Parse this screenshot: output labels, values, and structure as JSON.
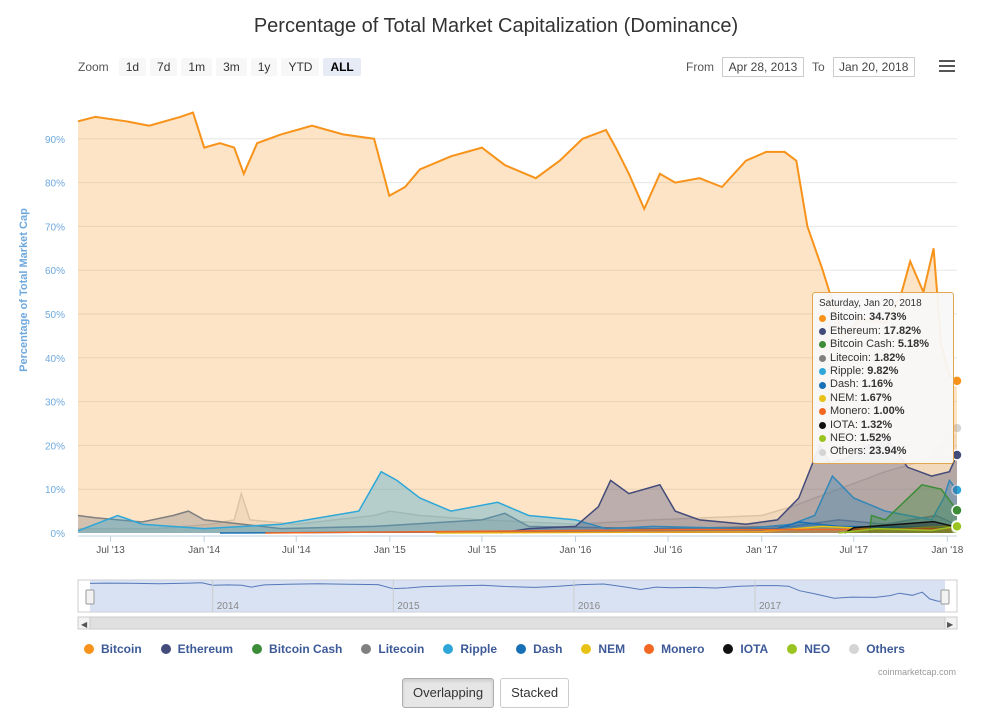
{
  "title": "Percentage of Total Market Capitalization (Dominance)",
  "zoom": {
    "label": "Zoom",
    "buttons": [
      "1d",
      "7d",
      "1m",
      "3m",
      "1y",
      "YTD",
      "ALL"
    ],
    "active": "ALL"
  },
  "range": {
    "from_label": "From",
    "from_value": "Apr 28, 2013",
    "to_label": "To",
    "to_value": "Jan 20, 2018"
  },
  "colors": {
    "Bitcoin": "#f7931a",
    "Ethereum": "#434b7a",
    "Bitcoin Cash": "#3c8c38",
    "Litecoin": "#808080",
    "Ripple": "#2ea7d8",
    "Dash": "#1770b5",
    "NEM": "#e8c214",
    "Monero": "#f26822",
    "IOTA": "#111111",
    "NEO": "#9ac421",
    "Others": "#d4d4d4"
  },
  "tooltip": {
    "date": "Saturday, Jan 20, 2018",
    "rows": [
      {
        "name": "Bitcoin",
        "value": "34.73%"
      },
      {
        "name": "Ethereum",
        "value": "17.82%"
      },
      {
        "name": "Bitcoin Cash",
        "value": "5.18%"
      },
      {
        "name": "Litecoin",
        "value": "1.82%"
      },
      {
        "name": "Ripple",
        "value": "9.82%"
      },
      {
        "name": "Dash",
        "value": "1.16%"
      },
      {
        "name": "NEM",
        "value": "1.67%"
      },
      {
        "name": "Monero",
        "value": "1.00%"
      },
      {
        "name": "IOTA",
        "value": "1.32%"
      },
      {
        "name": "NEO",
        "value": "1.52%"
      },
      {
        "name": "Others",
        "value": "23.94%"
      }
    ]
  },
  "legend": [
    "Bitcoin",
    "Ethereum",
    "Bitcoin Cash",
    "Litecoin",
    "Ripple",
    "Dash",
    "NEM",
    "Monero",
    "IOTA",
    "NEO",
    "Others"
  ],
  "navigator_years": [
    "2014",
    "2015",
    "2016",
    "2017"
  ],
  "credit": "coinmarketcap.com",
  "mode_buttons": {
    "overlapping": "Overlapping",
    "stacked": "Stacked"
  },
  "chart_data": {
    "type": "area",
    "title": "Percentage of Total Market Capitalization (Dominance)",
    "ylabel": "Percentage of Total Market Cap",
    "ylim": [
      0,
      100
    ],
    "yticks": [
      "0%",
      "10%",
      "20%",
      "30%",
      "40%",
      "50%",
      "60%",
      "70%",
      "80%",
      "90%"
    ],
    "x_range": [
      "2013-04-28",
      "2018-01-20"
    ],
    "xticks": [
      {
        "date": "2013-07-01",
        "label": "Jul '13"
      },
      {
        "date": "2014-01-01",
        "label": "Jan '14"
      },
      {
        "date": "2014-07-01",
        "label": "Jul '14"
      },
      {
        "date": "2015-01-01",
        "label": "Jan '15"
      },
      {
        "date": "2015-07-01",
        "label": "Jul '15"
      },
      {
        "date": "2016-01-01",
        "label": "Jan '16"
      },
      {
        "date": "2016-07-01",
        "label": "Jul '16"
      },
      {
        "date": "2017-01-01",
        "label": "Jan '17"
      },
      {
        "date": "2017-07-01",
        "label": "Jul '17"
      },
      {
        "date": "2018-01-01",
        "label": "Jan '18"
      }
    ],
    "grid": true,
    "legend_position": "bottom",
    "series": [
      {
        "name": "Others",
        "points": [
          [
            "2013-04-28",
            1
          ],
          [
            "2013-10-01",
            1
          ],
          [
            "2014-01-15",
            2
          ],
          [
            "2014-03-01",
            3
          ],
          [
            "2014-03-15",
            9
          ],
          [
            "2014-04-01",
            3
          ],
          [
            "2014-07-01",
            2
          ],
          [
            "2014-12-01",
            4
          ],
          [
            "2015-01-01",
            5
          ],
          [
            "2015-03-01",
            4
          ],
          [
            "2015-07-01",
            3
          ],
          [
            "2016-01-01",
            2
          ],
          [
            "2016-06-01",
            3
          ],
          [
            "2017-01-01",
            4
          ],
          [
            "2017-03-01",
            6
          ],
          [
            "2017-06-01",
            10
          ],
          [
            "2017-09-01",
            14
          ],
          [
            "2017-12-01",
            17
          ],
          [
            "2018-01-05",
            23
          ],
          [
            "2018-01-20",
            23.94
          ]
        ]
      },
      {
        "name": "Bitcoin",
        "points": [
          [
            "2013-04-28",
            94
          ],
          [
            "2013-06-01",
            95
          ],
          [
            "2013-08-01",
            94
          ],
          [
            "2013-09-15",
            93
          ],
          [
            "2013-11-15",
            95
          ],
          [
            "2013-12-10",
            96
          ],
          [
            "2014-01-01",
            88
          ],
          [
            "2014-02-01",
            89
          ],
          [
            "2014-03-01",
            88
          ],
          [
            "2014-03-20",
            82
          ],
          [
            "2014-04-15",
            89
          ],
          [
            "2014-06-01",
            91
          ],
          [
            "2014-08-01",
            93
          ],
          [
            "2014-10-01",
            91
          ],
          [
            "2014-12-01",
            90
          ],
          [
            "2014-12-31",
            77
          ],
          [
            "2015-01-31",
            79
          ],
          [
            "2015-03-01",
            83
          ],
          [
            "2015-05-01",
            86
          ],
          [
            "2015-07-01",
            88
          ],
          [
            "2015-08-15",
            84
          ],
          [
            "2015-10-15",
            81
          ],
          [
            "2015-12-01",
            85
          ],
          [
            "2016-01-15",
            90
          ],
          [
            "2016-03-01",
            92
          ],
          [
            "2016-03-20",
            88
          ],
          [
            "2016-04-15",
            82
          ],
          [
            "2016-05-15",
            74
          ],
          [
            "2016-06-15",
            82
          ],
          [
            "2016-07-15",
            80
          ],
          [
            "2016-09-01",
            81
          ],
          [
            "2016-10-15",
            79
          ],
          [
            "2016-12-01",
            85
          ],
          [
            "2017-01-10",
            87
          ],
          [
            "2017-02-15",
            87
          ],
          [
            "2017-03-10",
            85
          ],
          [
            "2017-04-01",
            70
          ],
          [
            "2017-05-01",
            60
          ],
          [
            "2017-06-10",
            45
          ],
          [
            "2017-07-15",
            49
          ],
          [
            "2017-09-01",
            48
          ],
          [
            "2017-10-01",
            54
          ],
          [
            "2017-10-20",
            62
          ],
          [
            "2017-11-15",
            55
          ],
          [
            "2017-12-05",
            65
          ],
          [
            "2017-12-20",
            43
          ],
          [
            "2018-01-05",
            36
          ],
          [
            "2018-01-20",
            34.73
          ]
        ]
      },
      {
        "name": "Litecoin",
        "points": [
          [
            "2013-04-28",
            4
          ],
          [
            "2013-06-01",
            3.5
          ],
          [
            "2013-09-01",
            2.5
          ],
          [
            "2013-11-01",
            4
          ],
          [
            "2013-12-01",
            5
          ],
          [
            "2014-01-01",
            3
          ],
          [
            "2014-06-01",
            1
          ],
          [
            "2014-12-01",
            1.5
          ],
          [
            "2015-07-01",
            3
          ],
          [
            "2015-08-15",
            4.5
          ],
          [
            "2015-10-01",
            1.5
          ],
          [
            "2016-06-01",
            1
          ],
          [
            "2017-03-01",
            1.5
          ],
          [
            "2017-06-01",
            3
          ],
          [
            "2017-09-01",
            2
          ],
          [
            "2017-12-10",
            4
          ],
          [
            "2018-01-20",
            1.82
          ]
        ]
      },
      {
        "name": "Ripple",
        "points": [
          [
            "2013-04-28",
            0.5
          ],
          [
            "2013-07-15",
            4
          ],
          [
            "2013-09-01",
            2
          ],
          [
            "2014-01-01",
            1
          ],
          [
            "2014-06-01",
            2
          ],
          [
            "2014-11-01",
            5
          ],
          [
            "2014-12-15",
            14
          ],
          [
            "2015-01-15",
            12
          ],
          [
            "2015-03-01",
            8
          ],
          [
            "2015-05-01",
            5
          ],
          [
            "2015-08-01",
            7
          ],
          [
            "2015-10-01",
            4
          ],
          [
            "2016-01-01",
            3
          ],
          [
            "2016-03-01",
            1
          ],
          [
            "2016-06-01",
            1.5
          ],
          [
            "2016-12-01",
            1
          ],
          [
            "2017-03-01",
            2
          ],
          [
            "2017-04-15",
            4
          ],
          [
            "2017-05-20",
            13
          ],
          [
            "2017-07-01",
            8
          ],
          [
            "2017-09-01",
            5
          ],
          [
            "2017-12-01",
            3
          ],
          [
            "2017-12-25",
            8
          ],
          [
            "2018-01-05",
            12
          ],
          [
            "2018-01-20",
            9.82
          ]
        ]
      },
      {
        "name": "Ethereum",
        "points": [
          [
            "2015-08-07",
            0
          ],
          [
            "2015-10-01",
            1
          ],
          [
            "2016-01-01",
            1.5
          ],
          [
            "2016-02-15",
            6
          ],
          [
            "2016-03-10",
            12
          ],
          [
            "2016-04-15",
            9
          ],
          [
            "2016-06-15",
            11
          ],
          [
            "2016-07-15",
            5
          ],
          [
            "2016-09-01",
            3
          ],
          [
            "2016-12-01",
            2
          ],
          [
            "2017-02-01",
            3
          ],
          [
            "2017-03-15",
            8
          ],
          [
            "2017-04-25",
            20
          ],
          [
            "2017-05-15",
            16
          ],
          [
            "2017-06-15",
            17
          ],
          [
            "2017-07-15",
            19
          ],
          [
            "2017-09-01",
            22
          ],
          [
            "2017-10-15",
            15
          ],
          [
            "2017-12-01",
            13
          ],
          [
            "2018-01-05",
            14
          ],
          [
            "2018-01-20",
            17.82
          ]
        ]
      },
      {
        "name": "Dash",
        "points": [
          [
            "2014-02-01",
            0
          ],
          [
            "2015-01-01",
            0.2
          ],
          [
            "2016-01-01",
            0.5
          ],
          [
            "2017-02-01",
            1
          ],
          [
            "2017-03-15",
            2.5
          ],
          [
            "2017-06-01",
            1.5
          ],
          [
            "2018-01-20",
            1.16
          ]
        ]
      },
      {
        "name": "NEM",
        "points": [
          [
            "2015-04-01",
            0
          ],
          [
            "2017-01-01",
            0.3
          ],
          [
            "2017-05-01",
            1.5
          ],
          [
            "2017-09-01",
            0.8
          ],
          [
            "2018-01-20",
            1.67
          ]
        ]
      },
      {
        "name": "Bitcoin Cash",
        "points": [
          [
            "2017-08-01",
            0
          ],
          [
            "2017-08-05",
            4
          ],
          [
            "2017-09-01",
            3
          ],
          [
            "2017-11-12",
            11
          ],
          [
            "2017-12-20",
            10
          ],
          [
            "2018-01-20",
            5.18
          ]
        ]
      },
      {
        "name": "Monero",
        "points": [
          [
            "2014-05-01",
            0
          ],
          [
            "2016-09-01",
            0.8
          ],
          [
            "2017-06-01",
            0.8
          ],
          [
            "2018-01-20",
            1.0
          ]
        ]
      },
      {
        "name": "IOTA",
        "points": [
          [
            "2017-06-13",
            0
          ],
          [
            "2017-07-01",
            1.2
          ],
          [
            "2017-12-05",
            2.6
          ],
          [
            "2018-01-20",
            1.32
          ]
        ]
      },
      {
        "name": "NEO",
        "points": [
          [
            "2017-06-01",
            0
          ],
          [
            "2017-08-15",
            1.0
          ],
          [
            "2017-12-01",
            0.6
          ],
          [
            "2018-01-20",
            1.52
          ]
        ]
      }
    ]
  }
}
